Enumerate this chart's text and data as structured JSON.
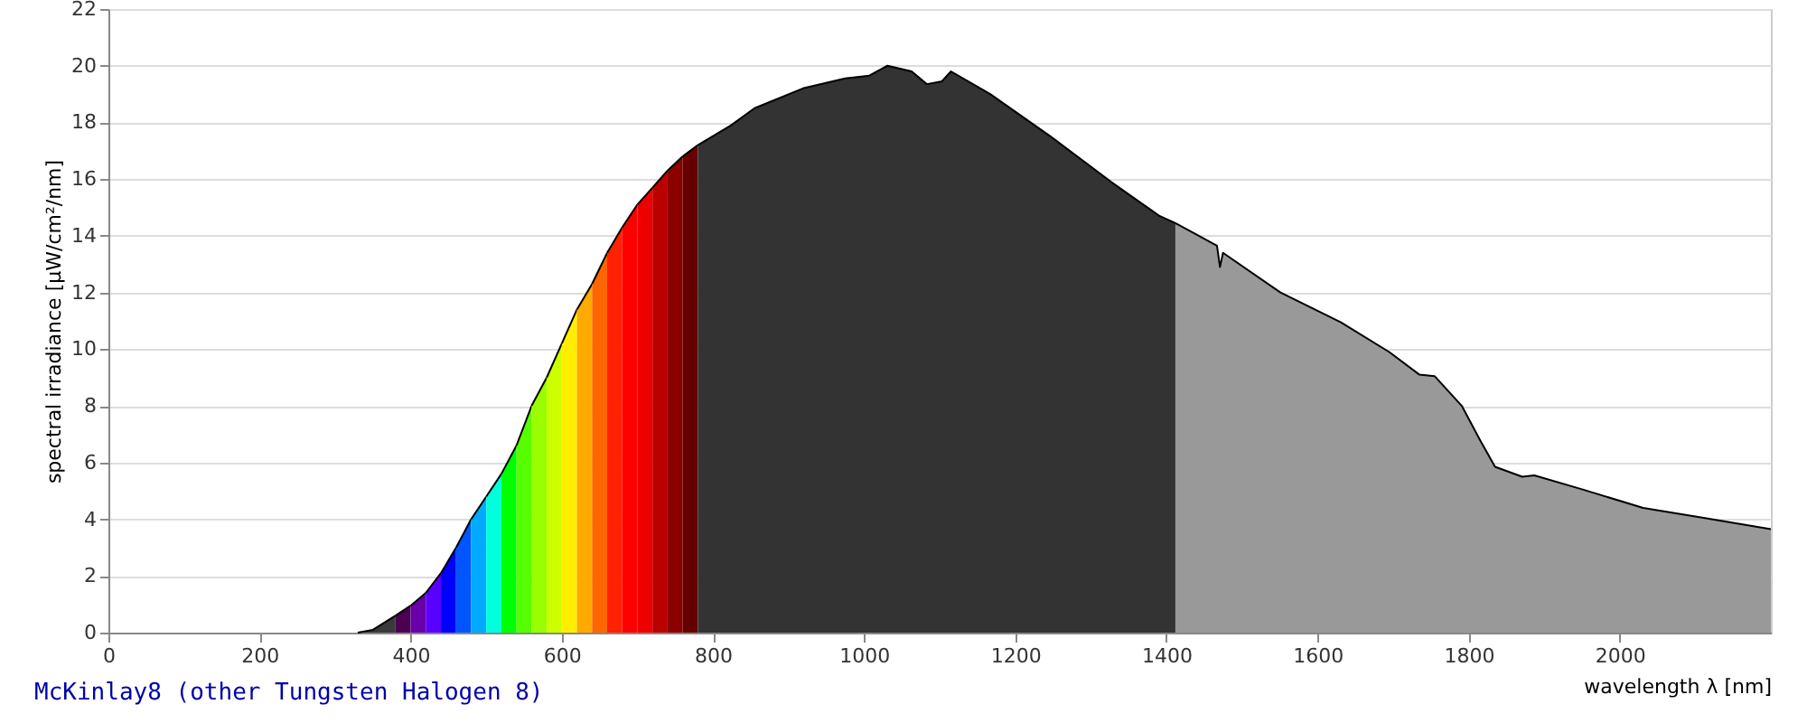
{
  "chart_data": {
    "type": "area",
    "xlabel": "wavelength λ [nm]",
    "ylabel": "spectral irradiance [µW/cm²/nm]",
    "annotations": [
      "McKinlay8 (other Tungsten Halogen 8)"
    ],
    "xlim": [
      0,
      2200
    ],
    "xticks": [
      0,
      200,
      400,
      600,
      800,
      1000,
      1200,
      1400,
      1600,
      1800,
      2000
    ],
    "ylim": [
      0,
      22
    ],
    "yticks": [
      0,
      2,
      4,
      6,
      8,
      10,
      12,
      14,
      16,
      18,
      20,
      22
    ],
    "grid": "y",
    "series": [
      {
        "color": "#3a3a3a",
        "x": [
          330,
          350,
          380
        ],
        "values": [
          0,
          0.1,
          0.6
        ]
      },
      {
        "color": "#4b0052",
        "x": [
          380,
          400
        ],
        "values": [
          0.6,
          0.95
        ]
      },
      {
        "color": "#6a00a8",
        "x": [
          400,
          420
        ],
        "values": [
          0.95,
          1.4
        ]
      },
      {
        "color": "#5a00ff",
        "x": [
          420,
          440
        ],
        "values": [
          1.4,
          2.1
        ]
      },
      {
        "color": "#0000ff",
        "x": [
          440,
          460
        ],
        "values": [
          2.1,
          3.0
        ]
      },
      {
        "color": "#0055ff",
        "x": [
          460,
          480
        ],
        "values": [
          3.0,
          4.0
        ]
      },
      {
        "color": "#00aaff",
        "x": [
          480,
          500
        ],
        "values": [
          4.0,
          4.8
        ]
      },
      {
        "color": "#00ffdd",
        "x": [
          500,
          520
        ],
        "values": [
          4.8,
          5.6
        ]
      },
      {
        "color": "#00ff00",
        "x": [
          520,
          540
        ],
        "values": [
          5.6,
          6.6
        ]
      },
      {
        "color": "#55ff00",
        "x": [
          540,
          560
        ],
        "values": [
          6.6,
          8.0
        ]
      },
      {
        "color": "#99ff00",
        "x": [
          560,
          580
        ],
        "values": [
          8.0,
          9.0
        ]
      },
      {
        "color": "#ccff00",
        "x": [
          580,
          600
        ],
        "values": [
          9.0,
          10.2
        ]
      },
      {
        "color": "#ffee00",
        "x": [
          600,
          620
        ],
        "values": [
          10.2,
          11.4
        ]
      },
      {
        "color": "#ffaa00",
        "x": [
          620,
          640
        ],
        "values": [
          11.4,
          12.3
        ]
      },
      {
        "color": "#ff6600",
        "x": [
          640,
          660
        ],
        "values": [
          12.3,
          13.4
        ]
      },
      {
        "color": "#ff2200",
        "x": [
          660,
          680
        ],
        "values": [
          13.4,
          14.3
        ]
      },
      {
        "color": "#ff0000",
        "x": [
          680,
          700
        ],
        "values": [
          14.3,
          15.1
        ]
      },
      {
        "color": "#ee0000",
        "x": [
          700,
          720
        ],
        "values": [
          15.1,
          15.7
        ]
      },
      {
        "color": "#bb0000",
        "x": [
          720,
          740
        ],
        "values": [
          15.7,
          16.3
        ]
      },
      {
        "color": "#8b0000",
        "x": [
          740,
          760
        ],
        "values": [
          16.3,
          16.8
        ]
      },
      {
        "color": "#660000",
        "x": [
          760,
          780
        ],
        "values": [
          16.8,
          17.2
        ]
      },
      {
        "color": "#333333",
        "x": [
          780,
          824,
          855,
          919,
          975,
          1007,
          1031,
          1063,
          1083,
          1103,
          1115,
          1167,
          1247,
          1327,
          1391,
          1412
        ],
        "values": [
          17.2,
          17.9,
          18.5,
          19.2,
          19.55,
          19.65,
          20.0,
          19.8,
          19.35,
          19.45,
          19.8,
          19.0,
          17.5,
          15.9,
          14.7,
          14.45
        ]
      },
      {
        "color": "#999999",
        "x": [
          1412,
          1467,
          1471,
          1475,
          1551,
          1631,
          1695,
          1735,
          1755,
          1791,
          1815,
          1835,
          1871,
          1887,
          1951,
          2031,
          2111,
          2200
        ],
        "values": [
          14.45,
          13.65,
          12.9,
          13.4,
          12.0,
          10.95,
          9.9,
          9.1,
          9.05,
          8.0,
          6.8,
          5.85,
          5.5,
          5.55,
          5.05,
          4.4,
          4.05,
          3.65
        ]
      }
    ]
  }
}
